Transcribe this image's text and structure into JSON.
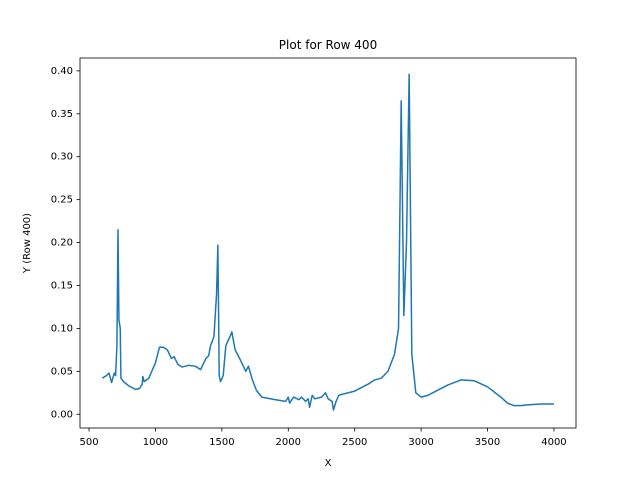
{
  "chart_data": {
    "type": "line",
    "title": "Plot for Row 400",
    "xlabel": "X",
    "ylabel": "Y (Row 400)",
    "color": "#1f77b4",
    "grid": false,
    "x": [
      600,
      630,
      650,
      670,
      690,
      700,
      710,
      718,
      725,
      735,
      740,
      760,
      800,
      850,
      880,
      900,
      905,
      915,
      950,
      1000,
      1030,
      1060,
      1090,
      1120,
      1140,
      1170,
      1200,
      1250,
      1300,
      1340,
      1380,
      1400,
      1415,
      1440,
      1460,
      1470,
      1480,
      1490,
      1510,
      1530,
      1560,
      1575,
      1600,
      1640,
      1680,
      1700,
      1730,
      1760,
      1800,
      1900,
      1980,
      2000,
      2010,
      2040,
      2080,
      2100,
      2130,
      2150,
      2160,
      2180,
      2200,
      2250,
      2280,
      2300,
      2330,
      2340,
      2360,
      2380,
      2400,
      2500,
      2600,
      2650,
      2700,
      2750,
      2800,
      2830,
      2850,
      2870,
      2890,
      2910,
      2930,
      2960,
      3000,
      3050,
      3100,
      3200,
      3300,
      3400,
      3500,
      3600,
      3650,
      3700,
      3750,
      3800,
      3900,
      4000
    ],
    "values": [
      0.042,
      0.045,
      0.048,
      0.037,
      0.048,
      0.045,
      0.08,
      0.215,
      0.11,
      0.1,
      0.042,
      0.038,
      0.033,
      0.029,
      0.03,
      0.035,
      0.044,
      0.038,
      0.042,
      0.06,
      0.078,
      0.078,
      0.075,
      0.065,
      0.067,
      0.058,
      0.055,
      0.057,
      0.056,
      0.052,
      0.065,
      0.068,
      0.08,
      0.09,
      0.14,
      0.197,
      0.045,
      0.038,
      0.045,
      0.08,
      0.09,
      0.096,
      0.075,
      0.063,
      0.05,
      0.056,
      0.04,
      0.028,
      0.02,
      0.017,
      0.015,
      0.02,
      0.013,
      0.02,
      0.017,
      0.02,
      0.015,
      0.018,
      0.008,
      0.022,
      0.018,
      0.02,
      0.025,
      0.018,
      0.015,
      0.005,
      0.015,
      0.022,
      0.023,
      0.027,
      0.035,
      0.04,
      0.042,
      0.05,
      0.07,
      0.1,
      0.365,
      0.115,
      0.2,
      0.396,
      0.07,
      0.025,
      0.02,
      0.022,
      0.026,
      0.034,
      0.04,
      0.039,
      0.032,
      0.02,
      0.013,
      0.01,
      0.01,
      0.011,
      0.012,
      0.012
    ],
    "xlim": [
      432,
      4166
    ],
    "ylim": [
      -0.016,
      0.415
    ],
    "xticks": [
      500,
      1000,
      1500,
      2000,
      2500,
      3000,
      3500,
      4000
    ],
    "yticks": [
      {
        "value": 0,
        "label": "0.00"
      },
      0.05,
      {
        "value": 0.1,
        "label": "0.10"
      },
      0.15,
      {
        "value": 0.2,
        "label": "0.20"
      },
      0.25,
      {
        "value": 0.3,
        "label": "0.30"
      },
      0.35,
      {
        "value": 0.4,
        "label": "0.40"
      }
    ]
  }
}
